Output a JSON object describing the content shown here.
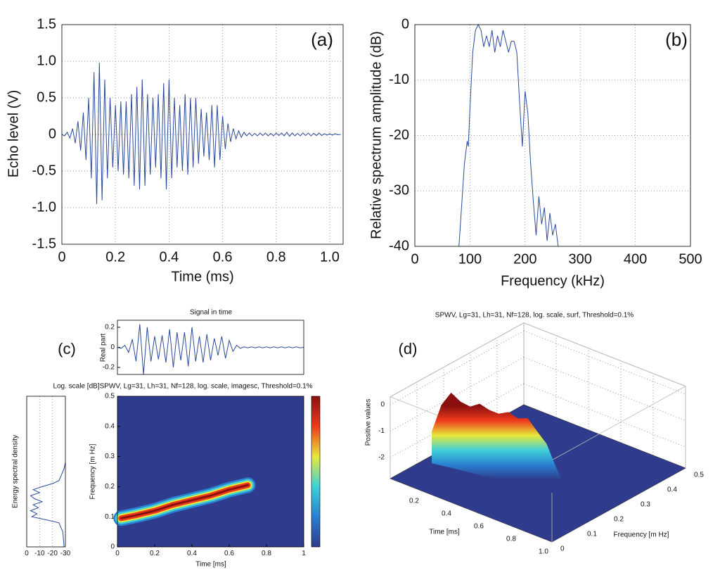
{
  "chart_data": [
    {
      "type": "line",
      "panel_label": "(a)",
      "xlabel": "Time (ms)",
      "ylabel": "Echo level (V)",
      "xlim": [
        0,
        1.05
      ],
      "ylim": [
        -1.5,
        1.5
      ],
      "xticks": [
        0,
        0.2,
        0.4,
        0.6,
        0.8,
        {
          "value": 1,
          "label": "1.0"
        }
      ],
      "yticks": [
        -1.5,
        {
          "value": -1,
          "label": "-1.0"
        },
        -0.5,
        0,
        0.5,
        {
          "value": 1,
          "label": "1.0"
        },
        1.5
      ],
      "grid": true,
      "color": "#2b4a9b",
      "x": [
        0,
        0.01,
        0.02,
        0.03,
        0.04,
        0.05,
        0.06,
        0.07,
        0.08,
        0.09,
        0.1,
        0.11,
        0.12,
        0.13,
        0.14,
        0.15,
        0.16,
        0.17,
        0.18,
        0.19,
        0.2,
        0.21,
        0.22,
        0.23,
        0.24,
        0.25,
        0.26,
        0.27,
        0.28,
        0.29,
        0.3,
        0.31,
        0.32,
        0.33,
        0.34,
        0.35,
        0.36,
        0.37,
        0.38,
        0.39,
        0.4,
        0.41,
        0.42,
        0.43,
        0.44,
        0.45,
        0.46,
        0.47,
        0.48,
        0.49,
        0.5,
        0.51,
        0.52,
        0.53,
        0.54,
        0.55,
        0.56,
        0.57,
        0.58,
        0.59,
        0.6,
        0.61,
        0.62,
        0.63,
        0.64,
        0.65,
        0.66,
        0.67,
        0.68,
        0.69,
        0.7,
        0.71,
        0.72,
        0.73,
        0.74,
        0.75,
        0.76,
        0.77,
        0.78,
        0.79,
        0.8,
        0.81,
        0.82,
        0.83,
        0.84,
        0.85,
        0.86,
        0.87,
        0.88,
        0.89,
        0.9,
        0.91,
        0.92,
        0.93,
        0.94,
        0.95,
        0.96,
        0.97,
        0.98,
        0.99,
        1,
        1.01,
        1.02,
        1.03,
        1.04
      ],
      "values": [
        0,
        -0.02,
        0.03,
        -0.05,
        0.08,
        -0.12,
        0.18,
        -0.22,
        0.3,
        -0.35,
        0.5,
        -0.6,
        0.85,
        -0.95,
        0.98,
        -0.9,
        0.75,
        -0.6,
        0.5,
        -0.45,
        0.4,
        -0.5,
        0.45,
        -0.55,
        0.45,
        -0.6,
        0.55,
        -0.7,
        0.65,
        -0.75,
        0.75,
        -0.7,
        0.55,
        -0.55,
        0.5,
        -0.45,
        0.55,
        -0.6,
        0.7,
        -0.75,
        0.75,
        -0.6,
        0.5,
        -0.45,
        0.4,
        -0.5,
        0.55,
        -0.55,
        0.5,
        -0.45,
        0.5,
        -0.4,
        0.35,
        -0.3,
        0.3,
        -0.35,
        0.4,
        -0.45,
        0.4,
        -0.35,
        0.25,
        -0.2,
        0.15,
        -0.1,
        0.08,
        -0.06,
        0.05,
        -0.04,
        0.03,
        -0.02,
        0.02,
        -0.02,
        0.015,
        -0.02,
        0.02,
        -0.015,
        0.02,
        -0.02,
        0.015,
        -0.02,
        0.02,
        -0.015,
        0.02,
        -0.02,
        0.03,
        -0.025,
        0.02,
        -0.02,
        0.015,
        -0.02,
        0.02,
        -0.015,
        0.02,
        -0.02,
        0.015,
        -0.015,
        0.02,
        -0.015,
        0.01,
        -0.01,
        0.01,
        -0.01,
        0.01,
        -0.005,
        0
      ]
    },
    {
      "type": "line",
      "panel_label": "(b)",
      "xlabel": "Frequency (kHz)",
      "ylabel": "Relative spectrum amplitude (dB)",
      "xlim": [
        0,
        500
      ],
      "ylim": [
        -40,
        0
      ],
      "xticks": [
        0,
        100,
        200,
        300,
        400,
        500
      ],
      "yticks": [
        -40,
        -30,
        -20,
        -10,
        0
      ],
      "grid": true,
      "color": "#2b4a9b",
      "x": [
        80,
        90,
        95,
        97,
        100,
        105,
        110,
        115,
        120,
        125,
        130,
        135,
        140,
        145,
        150,
        155,
        160,
        165,
        170,
        175,
        180,
        185,
        190,
        195,
        200,
        205,
        210,
        215,
        220,
        225,
        230,
        235,
        240,
        245,
        250,
        255,
        260
      ],
      "values": [
        -40,
        -25,
        -21,
        -22,
        -15,
        -5,
        -1,
        0,
        -1,
        -4,
        -2,
        -4,
        -1,
        -5,
        -2,
        -4,
        -1,
        -3,
        -5,
        -3,
        -3,
        -5,
        -14,
        -22,
        -12,
        -16,
        -25,
        -32,
        -38,
        -31,
        -36,
        -33,
        -39,
        -34,
        -38,
        -36,
        -40
      ]
    },
    {
      "type": "line",
      "panel_label": "(c)",
      "title": "Signal in time",
      "ylabel": "Real part",
      "xlim": [
        0,
        1
      ],
      "ylim": [
        -0.27,
        0.27
      ],
      "yticks": [
        -0.2,
        0,
        0.2
      ],
      "color": "#2b4a9b",
      "x": [
        0,
        0.02,
        0.04,
        0.06,
        0.08,
        0.1,
        0.12,
        0.14,
        0.16,
        0.18,
        0.2,
        0.22,
        0.24,
        0.26,
        0.28,
        0.3,
        0.32,
        0.34,
        0.36,
        0.38,
        0.4,
        0.42,
        0.44,
        0.46,
        0.48,
        0.5,
        0.52,
        0.54,
        0.56,
        0.58,
        0.6,
        0.62,
        0.64,
        0.66,
        0.68,
        0.7,
        0.72,
        0.74,
        0.76,
        0.78,
        0.8,
        0.82,
        0.84,
        0.86,
        0.88,
        0.9,
        0.92,
        0.94,
        0.96,
        0.98,
        1
      ],
      "values": [
        0,
        -0.01,
        0.02,
        -0.05,
        0.08,
        -0.14,
        0.23,
        -0.27,
        0.2,
        -0.14,
        0.11,
        -0.12,
        0.12,
        -0.15,
        0.18,
        -0.2,
        0.15,
        -0.13,
        0.15,
        -0.19,
        0.2,
        -0.14,
        0.11,
        -0.15,
        0.13,
        -0.13,
        0.09,
        -0.08,
        0.11,
        -0.11,
        0.07,
        -0.04,
        0.02,
        -0.01,
        0.005,
        -0.005,
        0.005,
        -0.005,
        0.005,
        -0.005,
        0.005,
        -0.005,
        0.005,
        -0.005,
        0.005,
        -0.005,
        0.005,
        -0.005,
        0.005,
        -0.005,
        0
      ]
    },
    {
      "type": "profile",
      "ylabel": "Energy spectral density",
      "xlim": [
        0,
        -30
      ],
      "ylim": [
        0,
        0.5
      ],
      "xticks": [
        0,
        -10,
        -20,
        -30
      ],
      "grid": true,
      "color": "#2b4a9b",
      "y": [
        0,
        0.05,
        0.08,
        0.09,
        0.1,
        0.11,
        0.12,
        0.13,
        0.14,
        0.15,
        0.16,
        0.17,
        0.18,
        0.19,
        0.2,
        0.21,
        0.22,
        0.24,
        0.26,
        0.28
      ],
      "values": [
        -29,
        -28,
        -25,
        -15,
        -4,
        -8,
        -3,
        -9,
        -5,
        -12,
        -6,
        -3,
        -10,
        -5,
        -12,
        -20,
        -25,
        -27,
        -29,
        -30
      ]
    },
    {
      "type": "heatmap",
      "title": "Log. scale [dB]SPWV, Lg=31, Lh=31, Nf=128, log. scale, imagesc, Threshold=0.1%",
      "xlabel": "Time [ms]",
      "ylabel": "Frequency [m Hz]",
      "xlim": [
        0,
        1
      ],
      "ylim": [
        0,
        0.5
      ],
      "xticks": [
        0,
        0.2,
        0.4,
        0.6,
        0.8,
        1
      ],
      "yticks": [
        0,
        0.1,
        0.2,
        0.3,
        0.4,
        0.5
      ],
      "colormap": [
        "#2f3b8c",
        "#2a7fd0",
        "#3fd0d8",
        "#e8e83a",
        "#ee3a1c",
        "#8a1010"
      ],
      "x": [
        0.02,
        0.1,
        0.2,
        0.3,
        0.4,
        0.5,
        0.6,
        0.7
      ],
      "values": [
        0.095,
        0.105,
        0.12,
        0.14,
        0.155,
        0.17,
        0.19,
        0.205
      ]
    },
    {
      "type": "surface",
      "panel_label": "(d)",
      "title": "SPWV, Lg=31, Lh=31, Nf=128, log. scale, surf, Threshold=0.1%",
      "xlabel": "Time [ms]",
      "ylabel": "Frequency [m Hz]",
      "zlabel": "Positive values",
      "xlim": [
        0,
        1
      ],
      "ylim": [
        0,
        0.5
      ],
      "zlim": [
        -2.8,
        0.3
      ],
      "xticks": [
        0.2,
        0.4,
        0.6,
        0.8,
        {
          "value": 1,
          "label": "1.0"
        }
      ],
      "yticks": [
        0,
        0.1,
        0.2,
        0.3,
        0.4,
        0.5
      ],
      "zticks": [
        0,
        -1,
        -2
      ],
      "colormap": [
        "#2f3b8c",
        "#2a7fd0",
        "#3fd0d8",
        "#e8e83a",
        "#ee3a1c",
        "#8a1010"
      ],
      "x": [
        0.05,
        0.1,
        0.15,
        0.2,
        0.25,
        0.3,
        0.35,
        0.4,
        0.45,
        0.5,
        0.55,
        0.6,
        0.65,
        0.7,
        0.75
      ],
      "y": [
        0.125,
        0.131,
        0.137,
        0.142,
        0.148,
        0.153,
        0.159,
        0.164,
        0.17,
        0.175,
        0.181,
        0.186,
        0.192,
        0.197,
        0.203
      ],
      "values": [
        -1.6,
        -0.5,
        0.05,
        -0.2,
        -0.3,
        -0.1,
        -0.25,
        -0.3,
        -0.15,
        -0.3,
        -0.2,
        -0.6,
        -1.0,
        -1.8,
        -2.5
      ]
    }
  ]
}
